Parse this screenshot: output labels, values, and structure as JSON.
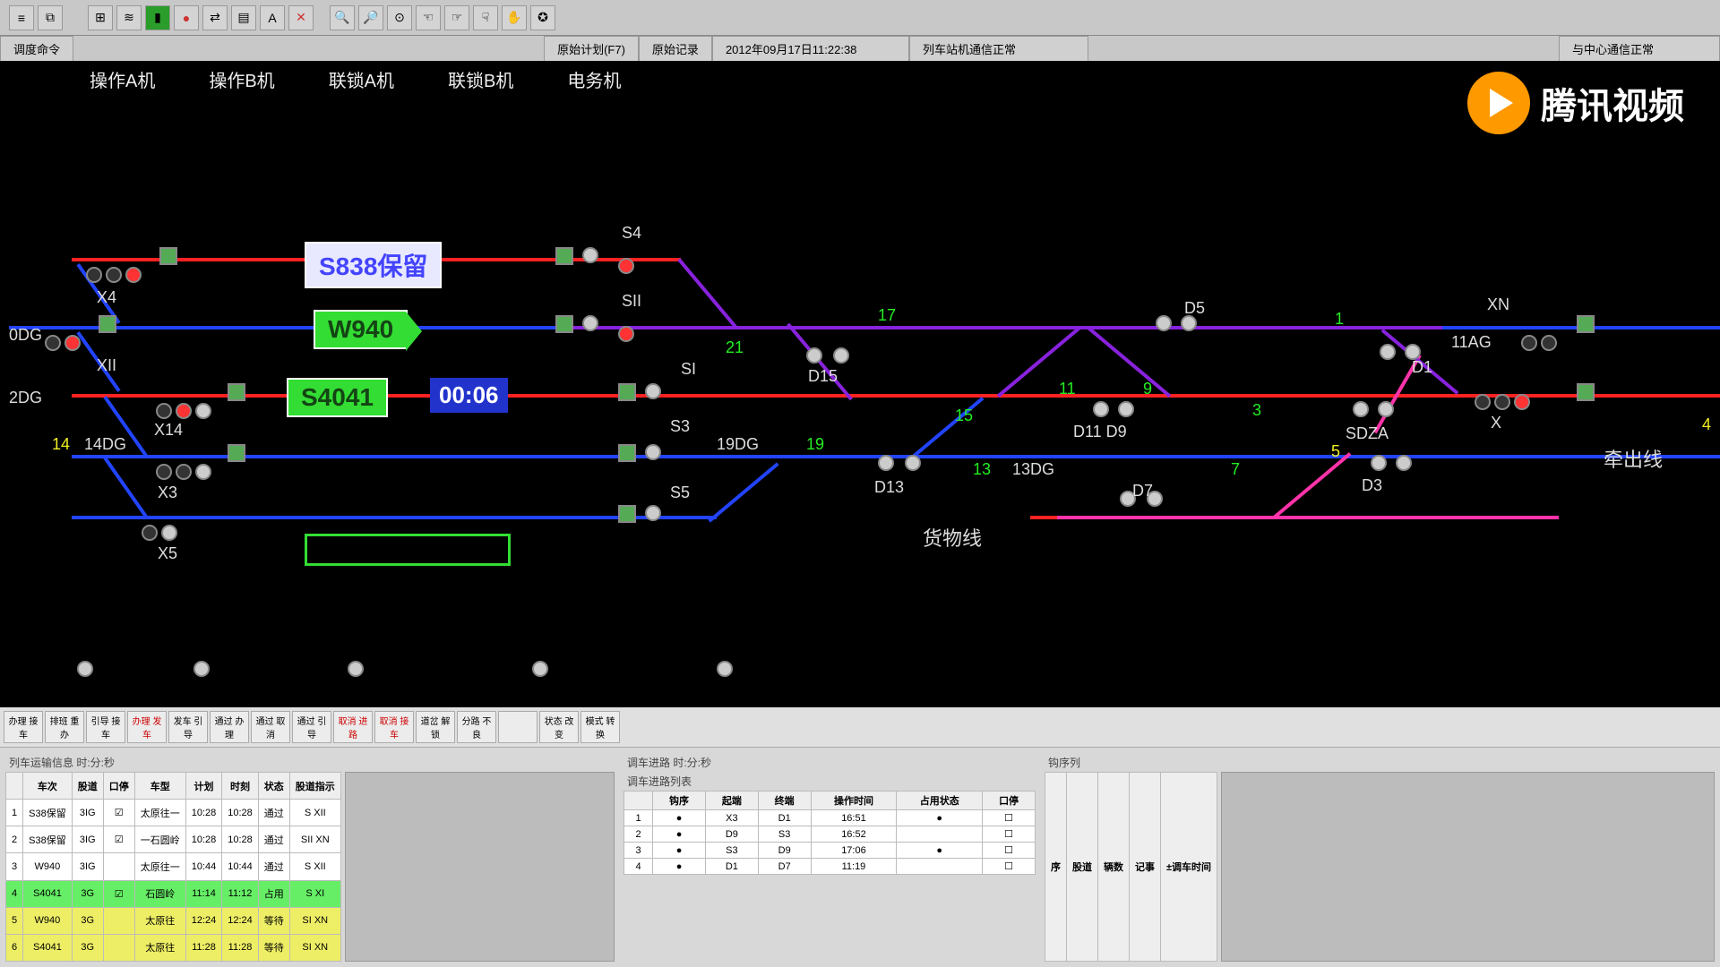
{
  "toolbar": {
    "icons": [
      "list",
      "copy",
      "ruler",
      "align",
      "rect",
      "circle",
      "link",
      "note",
      "text",
      "x",
      "zoom-in",
      "zoom-out",
      "zoom-fit",
      "hand1",
      "hand2",
      "hand3",
      "hand4",
      "clock"
    ]
  },
  "tabs": {
    "left": "调度命令",
    "design": "原始计划(F7)",
    "record": "原始记录",
    "datetime": "2012年09月17日11:22:38",
    "status": "列车站机通信正常",
    "center": "与中心通信正常"
  },
  "stations": [
    "操作A机",
    "操作B机",
    "联锁A机",
    "联锁B机",
    "电务机"
  ],
  "trains": {
    "t1": {
      "id": "S838保留"
    },
    "t2": {
      "id": "W940"
    },
    "t3": {
      "id": "S4041",
      "timer": "00:06"
    }
  },
  "labels": {
    "s4": "S4",
    "sii": "SII",
    "x4": "X4",
    "xii": "XII",
    "x14": "X14",
    "x3": "X3",
    "x5": "X5",
    "odg": "0DG",
    "2dg": "2DG",
    "14": "14",
    "14dg": "14DG",
    "21": "21",
    "17": "17",
    "si": "SI",
    "d15": "D15",
    "19dg": "19DG",
    "s3": "S3",
    "19": "19",
    "s5": "S5",
    "d13": "D13",
    "13": "13",
    "13dg": "13DG",
    "15": "15",
    "货物线": "货物线",
    "11": "11",
    "9": "9",
    "3": "3",
    "d5": "D5",
    "d11d9": "D11 D9",
    "7": "7",
    "5": "5",
    "d7": "D7",
    "d3": "D3",
    "sdza": "SDZA",
    "d1": "D1",
    "11ag": "11AG",
    "xn": "XN",
    "x": "X",
    "1": "1",
    "牵出线": "牵出线",
    "4": "4"
  },
  "logo": "腾讯视频",
  "btnrow": [
    "办理\n接车",
    "排班\n重办",
    "引导\n接车",
    "办理\n发车",
    "发车\n引导",
    "通过\n办理",
    "通过\n取消",
    "通过\n引导",
    "取消\n进路",
    "取消\n接车",
    "道岔\n解锁",
    "分路\n不良",
    "",
    "状态\n改变",
    "模式\n转换"
  ],
  "tableA": {
    "title": "列车运输信息 时:分:秒",
    "cols": [
      "",
      "车次",
      "股道",
      "口停",
      "车型",
      "计划",
      "时刻",
      "状态",
      "股道指示"
    ],
    "rows": [
      {
        "c": [
          "1",
          "S38保留",
          "3IG",
          "☑",
          "太原往一",
          "10:28",
          "10:28",
          "通过",
          "S XII"
        ]
      },
      {
        "c": [
          "2",
          "S38保留",
          "3IG",
          "☑",
          "一石圆岭",
          "10:28",
          "10:28",
          "通过",
          "SII XN"
        ]
      },
      {
        "c": [
          "3",
          "W940",
          "3IG",
          "",
          "太原往一",
          "10:44",
          "10:44",
          "通过",
          "S XII"
        ]
      },
      {
        "c": [
          "4",
          "S4041",
          "3G",
          "☑",
          "石圆岭",
          "11:14",
          "11:12",
          "占用",
          "S XI"
        ],
        "cls": "row-green"
      },
      {
        "c": [
          "5",
          "W940",
          "3G",
          "",
          "太原往",
          "12:24",
          "12:24",
          "等待",
          "SI XN"
        ],
        "cls": "row-yellow"
      },
      {
        "c": [
          "6",
          "S4041",
          "3G",
          "",
          "太原往",
          "11:28",
          "11:28",
          "等待",
          "SI XN"
        ],
        "cls": "row-yellow"
      }
    ]
  },
  "tableB": {
    "title1": "调车进路  时:分:秒",
    "title2": "调车进路列表",
    "cols": [
      "",
      "钩序",
      "起端",
      "终端",
      "操作时间",
      "占用状态",
      "口停"
    ],
    "rows": [
      {
        "c": [
          "1",
          "●",
          "X3",
          "D1",
          "16:51",
          "●",
          "☐"
        ]
      },
      {
        "c": [
          "2",
          "●",
          "D9",
          "S3",
          "16:52",
          "",
          "☐"
        ]
      },
      {
        "c": [
          "3",
          "●",
          "S3",
          "D9",
          "17:06",
          "●",
          "☐"
        ]
      },
      {
        "c": [
          "4",
          "●",
          "D1",
          "D7",
          "11:19",
          "",
          "☐"
        ]
      }
    ]
  },
  "tableC": {
    "title": "钩序列",
    "cols": [
      "序",
      "股道",
      "辆数",
      "记事",
      "±调车时间"
    ]
  }
}
